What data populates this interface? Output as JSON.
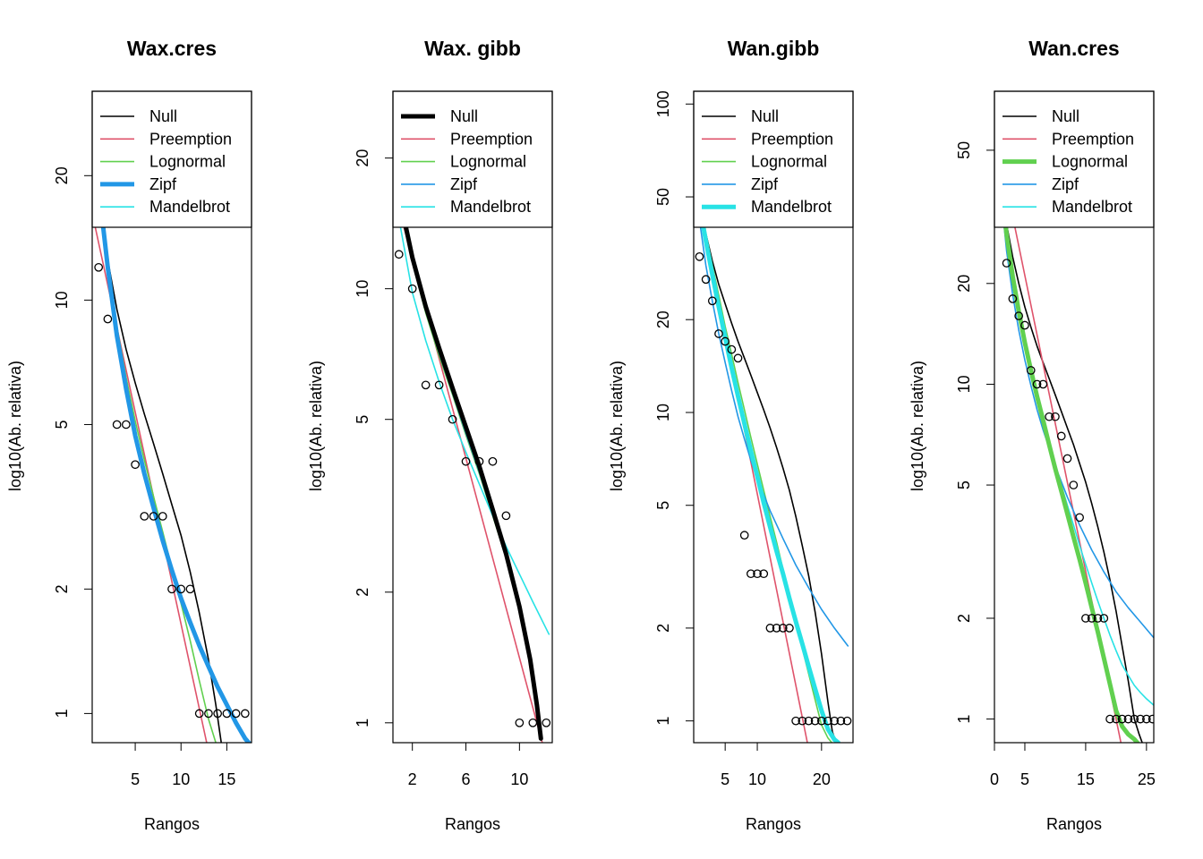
{
  "legend_labels": [
    "Null",
    "Preemption",
    "Lognormal",
    "Zipf",
    "Mandelbrot"
  ],
  "colors": {
    "Null": "#000000",
    "Preemption": "#DF536B",
    "Lognormal": "#61D04F",
    "Zipf": "#2297E6",
    "Mandelbrot": "#28E2E5",
    "points": "#000000"
  },
  "chart_data": [
    {
      "type": "scatter",
      "title": "Wax.cres",
      "xlabel": "Rangos",
      "ylabel": "log10(Ab. relativa)",
      "log_y": true,
      "xlim": [
        0.3,
        17.7
      ],
      "ylim": [
        0.85,
        32
      ],
      "xticks": [
        5,
        10,
        15
      ],
      "yticks": [
        1,
        2,
        5,
        10,
        20
      ],
      "legend_position": "top",
      "highlight_series": "Zipf",
      "points": {
        "x": [
          1,
          2,
          3,
          4,
          5,
          6,
          7,
          8,
          9,
          10,
          11,
          12,
          13,
          14,
          15,
          16,
          17
        ],
        "y": [
          12,
          9,
          5,
          5,
          4,
          3,
          3,
          3,
          2,
          2,
          2,
          1,
          1,
          1,
          1,
          1,
          1
        ]
      },
      "series": [
        {
          "name": "Null",
          "x": [
            0.5,
            1,
            2,
            3,
            4,
            5,
            6,
            7,
            8,
            9,
            10,
            11,
            12,
            13,
            13.8,
            14.4
          ],
          "y": [
            22,
            18.5,
            12.5,
            9.5,
            7.6,
            6.3,
            5.3,
            4.5,
            3.8,
            3.2,
            2.7,
            2.2,
            1.75,
            1.35,
            1.05,
            0.85
          ]
        },
        {
          "name": "Preemption",
          "x": [
            0.5,
            12.8
          ],
          "y": [
            15.5,
            0.85
          ]
        },
        {
          "name": "Lognormal",
          "x": [
            0.5,
            1,
            2,
            3,
            4,
            5,
            6,
            7,
            8,
            9,
            10,
            11,
            12,
            13,
            13.8
          ],
          "y": [
            28,
            20,
            12,
            8.6,
            6.5,
            5.1,
            4.1,
            3.35,
            2.75,
            2.25,
            1.85,
            1.5,
            1.2,
            0.97,
            0.85
          ]
        },
        {
          "name": "Zipf",
          "x": [
            0.5,
            1,
            1.5,
            2,
            3,
            4,
            5,
            6,
            7,
            8,
            9,
            10,
            11,
            12,
            13,
            14,
            15,
            16,
            17,
            17.6
          ],
          "y": [
            34,
            22,
            15,
            12,
            8.2,
            6.1,
            4.7,
            3.8,
            3.15,
            2.62,
            2.22,
            1.9,
            1.66,
            1.46,
            1.3,
            1.16,
            1.05,
            0.95,
            0.87,
            0.84
          ]
        },
        {
          "name": "Mandelbrot",
          "x": [
            0.5,
            1,
            1.5,
            2,
            3,
            4,
            5,
            6,
            7,
            8,
            9,
            10,
            11,
            12,
            13,
            14,
            15,
            16,
            17,
            17.6
          ],
          "y": [
            33,
            21.5,
            14.8,
            11.9,
            8.1,
            6.05,
            4.68,
            3.78,
            3.12,
            2.6,
            2.2,
            1.89,
            1.65,
            1.45,
            1.29,
            1.15,
            1.04,
            0.94,
            0.86,
            0.83
          ]
        }
      ]
    },
    {
      "type": "scatter",
      "title": "Wax. gibb",
      "xlabel": "Rangos",
      "ylabel": "log10(Ab. relativa)",
      "log_y": true,
      "xlim": [
        0.55,
        12.45
      ],
      "ylim": [
        0.9,
        28.5
      ],
      "xticks": [
        2,
        6,
        10
      ],
      "yticks": [
        1,
        2,
        5,
        10,
        20
      ],
      "legend_position": "top",
      "highlight_series": "Null",
      "points": {
        "x": [
          1,
          2,
          3,
          4,
          5,
          6,
          7,
          8,
          9,
          10,
          11,
          12
        ],
        "y": [
          12,
          10,
          6,
          6,
          5,
          4,
          4,
          4,
          3,
          1,
          1,
          1
        ]
      },
      "series": [
        {
          "name": "Null",
          "x": [
            0.6,
            1,
            2,
            3,
            4,
            5,
            6,
            7,
            8,
            9,
            10,
            10.8,
            11.3,
            11.6
          ],
          "y": [
            20,
            16.5,
            11.8,
            9.1,
            7.3,
            5.9,
            4.8,
            3.9,
            3.1,
            2.45,
            1.85,
            1.4,
            1.1,
            0.92
          ]
        },
        {
          "name": "Preemption",
          "x": [
            0.6,
            11.7
          ],
          "y": [
            17,
            0.9
          ]
        },
        {
          "name": "Lognormal",
          "x": [
            0.6,
            1,
            2,
            3,
            4,
            5,
            6,
            7,
            8,
            9,
            10,
            11,
            11.6
          ],
          "y": [
            19,
            16,
            11.5,
            8.8,
            7,
            5.7,
            4.6,
            3.75,
            3,
            2.4,
            1.85,
            1.3,
            0.95
          ]
        },
        {
          "name": "Zipf",
          "x": [
            0.6,
            1,
            2,
            3,
            4,
            5,
            6,
            7,
            8,
            9,
            10,
            11,
            11.6
          ],
          "y": [
            19.5,
            16.2,
            11.6,
            8.9,
            7.1,
            5.75,
            4.65,
            3.78,
            3.02,
            2.42,
            1.86,
            1.32,
            0.96
          ]
        },
        {
          "name": "Mandelbrot",
          "x": [
            0.6,
            1,
            2,
            3,
            4,
            5,
            6,
            7,
            8,
            9,
            10,
            11,
            12.2
          ],
          "y": [
            20,
            14.5,
            9.8,
            7.6,
            6.1,
            5,
            4.2,
            3.55,
            3.0,
            2.55,
            2.2,
            1.9,
            1.6
          ]
        }
      ]
    },
    {
      "type": "scatter",
      "title": "Wan.gibb",
      "xlabel": "Rangos",
      "ylabel": "log10(Ab. relativa)",
      "log_y": true,
      "xlim": [
        0.1,
        24.9
      ],
      "ylim": [
        0.85,
        110
      ],
      "xticks": [
        5,
        10,
        20
      ],
      "yticks": [
        1,
        2,
        5,
        10,
        20,
        50,
        100
      ],
      "legend_position": "top",
      "highlight_series": "Mandelbrot",
      "points": {
        "x": [
          1,
          2,
          3,
          4,
          5,
          6,
          7,
          8,
          9,
          10,
          11,
          12,
          13,
          14,
          15,
          16,
          17,
          18,
          19,
          20,
          21,
          22,
          23,
          24
        ],
        "y": [
          32,
          27,
          23,
          18,
          17,
          16,
          15,
          4,
          3,
          3,
          3,
          2,
          2,
          2,
          2,
          1,
          1,
          1,
          1,
          1,
          1,
          1,
          1,
          1
        ]
      },
      "series": [
        {
          "name": "Null",
          "x": [
            0.3,
            1,
            2,
            3,
            4,
            5,
            6,
            7,
            8,
            9,
            10,
            11,
            12,
            13,
            14,
            15,
            16,
            17,
            18,
            19,
            20,
            21,
            21.7,
            22.3
          ],
          "y": [
            60,
            48,
            38,
            31,
            26,
            22.5,
            19.5,
            17,
            15,
            13.2,
            11.6,
            10.2,
            8.9,
            7.7,
            6.6,
            5.6,
            4.6,
            3.7,
            2.95,
            2.25,
            1.65,
            1.15,
            0.92,
            0.85
          ]
        },
        {
          "name": "Preemption",
          "x": [
            0.3,
            17.8
          ],
          "y": [
            55,
            0.85
          ]
        },
        {
          "name": "Lognormal",
          "x": [
            0.3,
            1,
            2,
            3,
            4,
            5,
            6,
            7,
            8,
            9,
            10,
            11,
            12,
            13,
            14,
            15,
            16,
            17,
            18,
            19,
            20,
            21,
            21.6
          ],
          "y": [
            62,
            50,
            38,
            30,
            24,
            19,
            15.5,
            12.5,
            10.2,
            8.3,
            6.8,
            5.6,
            4.6,
            3.8,
            3.1,
            2.55,
            2.1,
            1.72,
            1.42,
            1.17,
            0.97,
            0.88,
            0.85
          ]
        },
        {
          "name": "Zipf",
          "x": [
            0.3,
            1,
            2,
            3,
            4,
            5,
            6,
            7,
            8,
            9,
            10,
            12,
            14,
            16,
            18,
            20,
            22,
            24.1
          ],
          "y": [
            62,
            42,
            30,
            23,
            18,
            14.5,
            11.8,
            9.7,
            8.2,
            7,
            6.1,
            4.8,
            3.9,
            3.2,
            2.7,
            2.3,
            2.0,
            1.75
          ]
        },
        {
          "name": "Mandelbrot",
          "x": [
            0.3,
            1,
            2,
            3,
            4,
            5,
            6,
            7,
            8,
            9,
            10,
            11,
            12,
            13,
            14,
            15,
            16,
            17,
            18,
            19,
            20,
            21,
            22,
            22.6
          ],
          "y": [
            60,
            47,
            36,
            28,
            22,
            17.5,
            14,
            11.3,
            9.2,
            7.5,
            6.2,
            5.1,
            4.25,
            3.55,
            3.0,
            2.5,
            2.1,
            1.78,
            1.5,
            1.27,
            1.08,
            0.94,
            0.87,
            0.85
          ]
        }
      ]
    },
    {
      "type": "scatter",
      "title": "Wan.cres",
      "xlabel": "Rangos",
      "ylabel": "log10(Ab. relativa)",
      "log_y": true,
      "xlim": [
        0,
        26.2
      ],
      "ylim": [
        0.85,
        75
      ],
      "xticks": [
        0,
        5,
        15,
        25
      ],
      "yticks": [
        1,
        2,
        5,
        10,
        20,
        50
      ],
      "legend_position": "top",
      "highlight_series": "Lognormal",
      "points": {
        "x": [
          1,
          2,
          3,
          4,
          5,
          6,
          7,
          8,
          9,
          10,
          11,
          12,
          13,
          14,
          15,
          16,
          17,
          18,
          19,
          20,
          21,
          22,
          23,
          24,
          25,
          26
        ],
        "y": [
          32,
          23,
          18,
          16,
          15,
          11,
          10,
          10,
          8,
          8,
          7,
          6,
          5,
          4,
          2,
          2,
          2,
          2,
          1,
          1,
          1,
          1,
          1,
          1,
          1,
          1
        ]
      },
      "series": [
        {
          "name": "Null",
          "x": [
            0.3,
            1,
            2,
            3,
            4,
            5,
            6,
            7,
            8,
            9,
            10,
            11,
            12,
            13,
            14,
            15,
            16,
            17,
            18,
            19,
            20,
            21,
            22,
            23,
            23.8,
            24.3
          ],
          "y": [
            60,
            42,
            30,
            24,
            20,
            17,
            14.8,
            13,
            11.6,
            10.4,
            9.3,
            8.3,
            7.4,
            6.6,
            5.8,
            5.1,
            4.4,
            3.75,
            3.15,
            2.6,
            2.1,
            1.65,
            1.3,
            1.0,
            0.9,
            0.85
          ]
        },
        {
          "name": "Preemption",
          "x": [
            0.3,
            20.8
          ],
          "y": [
            55,
            0.85
          ]
        },
        {
          "name": "Lognormal",
          "x": [
            0.3,
            1,
            2,
            3,
            4,
            5,
            6,
            7,
            8,
            9,
            10,
            11,
            12,
            13,
            14,
            15,
            16,
            17,
            18,
            19,
            20,
            21,
            22,
            23,
            23.5
          ],
          "y": [
            60,
            40,
            28,
            21,
            16.5,
            13.3,
            11,
            9.2,
            7.8,
            6.6,
            5.6,
            4.8,
            4.1,
            3.5,
            3.0,
            2.55,
            2.15,
            1.82,
            1.52,
            1.27,
            1.06,
            0.95,
            0.9,
            0.87,
            0.85
          ]
        },
        {
          "name": "Zipf",
          "x": [
            0.3,
            1,
            2,
            3,
            4,
            5,
            6,
            7,
            8,
            10,
            12,
            14,
            16,
            18,
            20,
            22,
            24,
            26.2
          ],
          "y": [
            60,
            38,
            25,
            18.5,
            14.5,
            11.8,
            9.9,
            8.4,
            7.3,
            5.7,
            4.6,
            3.8,
            3.2,
            2.75,
            2.4,
            2.15,
            1.95,
            1.75
          ]
        },
        {
          "name": "Mandelbrot",
          "x": [
            0.3,
            1,
            2,
            3,
            4,
            5,
            6,
            7,
            8,
            9,
            10,
            11,
            12,
            13,
            14,
            15,
            16,
            17,
            18,
            19,
            20,
            21,
            22,
            23,
            24,
            25,
            26.2
          ],
          "y": [
            60,
            40,
            27,
            20.5,
            16,
            13,
            10.8,
            9.1,
            7.8,
            6.7,
            5.8,
            5.0,
            4.35,
            3.8,
            3.3,
            2.9,
            2.55,
            2.25,
            2.0,
            1.78,
            1.6,
            1.45,
            1.35,
            1.26,
            1.2,
            1.15,
            1.1
          ]
        }
      ]
    }
  ]
}
